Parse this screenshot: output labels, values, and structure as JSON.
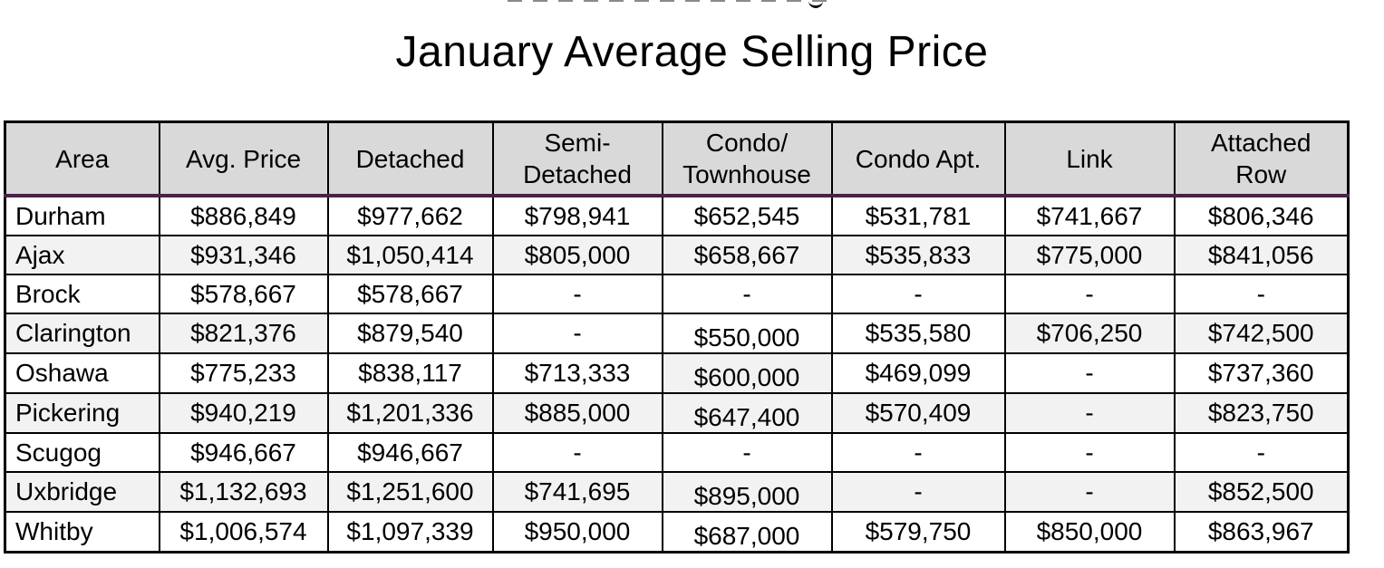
{
  "page": {
    "title": "January Average Selling Price"
  },
  "colors": {
    "header_bg": "#d9d9d9",
    "band_bg": "#f2f2f2",
    "header_underline": "#4b2049",
    "border": "#000000"
  },
  "table": {
    "columns": [
      "Area",
      "Avg. Price",
      "Detached",
      "Semi-\nDetached",
      "Condo/\nTownhouse",
      "Condo Apt.",
      "Link",
      "Attached\nRow"
    ],
    "rows": [
      {
        "cells": [
          {
            "v": "Durham",
            "bg": "w"
          },
          {
            "v": "$886,849",
            "bg": "w"
          },
          {
            "v": "$977,662",
            "bg": "w"
          },
          {
            "v": "$798,941",
            "bg": "w"
          },
          {
            "v": "$652,545",
            "bg": "w"
          },
          {
            "v": "$531,781",
            "bg": "w"
          },
          {
            "v": "$741,667",
            "bg": "w"
          },
          {
            "v": "$806,346",
            "bg": "w"
          }
        ]
      },
      {
        "cells": [
          {
            "v": "Ajax",
            "bg": "g"
          },
          {
            "v": "$931,346",
            "bg": "g"
          },
          {
            "v": "$1,050,414",
            "bg": "g"
          },
          {
            "v": "$805,000",
            "bg": "g"
          },
          {
            "v": "$658,667",
            "bg": "g"
          },
          {
            "v": "$535,833",
            "bg": "g"
          },
          {
            "v": "$775,000",
            "bg": "g"
          },
          {
            "v": "$841,056",
            "bg": "g"
          }
        ]
      },
      {
        "cells": [
          {
            "v": "Brock",
            "bg": "w"
          },
          {
            "v": "$578,667",
            "bg": "w"
          },
          {
            "v": "$578,667",
            "bg": "w"
          },
          {
            "v": "-",
            "bg": "w"
          },
          {
            "v": "-",
            "bg": "w"
          },
          {
            "v": "-",
            "bg": "w"
          },
          {
            "v": "-",
            "bg": "w"
          },
          {
            "v": "-",
            "bg": "w"
          }
        ]
      },
      {
        "cells": [
          {
            "v": "Clarington",
            "bg": "g"
          },
          {
            "v": "$821,376",
            "bg": "g"
          },
          {
            "v": "$879,540",
            "bg": "w"
          },
          {
            "v": "-",
            "bg": "w"
          },
          {
            "v": "$550,000",
            "bg": "w",
            "low": true
          },
          {
            "v": "$535,580",
            "bg": "w"
          },
          {
            "v": "$706,250",
            "bg": "g"
          },
          {
            "v": "$742,500",
            "bg": "g"
          }
        ]
      },
      {
        "cells": [
          {
            "v": "Oshawa",
            "bg": "w"
          },
          {
            "v": "$775,233",
            "bg": "w"
          },
          {
            "v": "$838,117",
            "bg": "w"
          },
          {
            "v": "$713,333",
            "bg": "w"
          },
          {
            "v": "$600,000",
            "bg": "g",
            "low": true
          },
          {
            "v": "$469,099",
            "bg": "w"
          },
          {
            "v": "-",
            "bg": "w"
          },
          {
            "v": "$737,360",
            "bg": "w"
          }
        ]
      },
      {
        "cells": [
          {
            "v": "Pickering",
            "bg": "g"
          },
          {
            "v": "$940,219",
            "bg": "g"
          },
          {
            "v": "$1,201,336",
            "bg": "g"
          },
          {
            "v": "$885,000",
            "bg": "g"
          },
          {
            "v": "$647,400",
            "bg": "g",
            "low": true
          },
          {
            "v": "$570,409",
            "bg": "g"
          },
          {
            "v": "-",
            "bg": "g"
          },
          {
            "v": "$823,750",
            "bg": "g"
          }
        ]
      },
      {
        "cells": [
          {
            "v": "Scugog",
            "bg": "w"
          },
          {
            "v": "$946,667",
            "bg": "w"
          },
          {
            "v": "$946,667",
            "bg": "w"
          },
          {
            "v": "-",
            "bg": "w"
          },
          {
            "v": "-",
            "bg": "w"
          },
          {
            "v": "-",
            "bg": "w"
          },
          {
            "v": "-",
            "bg": "w"
          },
          {
            "v": "-",
            "bg": "w"
          }
        ]
      },
      {
        "cells": [
          {
            "v": "Uxbridge",
            "bg": "g"
          },
          {
            "v": "$1,132,693",
            "bg": "g"
          },
          {
            "v": "$1,251,600",
            "bg": "g"
          },
          {
            "v": "$741,695",
            "bg": "g"
          },
          {
            "v": "$895,000",
            "bg": "g",
            "low": true
          },
          {
            "v": "-",
            "bg": "g"
          },
          {
            "v": "-",
            "bg": "g"
          },
          {
            "v": "$852,500",
            "bg": "g"
          }
        ]
      },
      {
        "cells": [
          {
            "v": "Whitby",
            "bg": "w"
          },
          {
            "v": "$1,006,574",
            "bg": "w"
          },
          {
            "v": "$1,097,339",
            "bg": "w"
          },
          {
            "v": "$950,000",
            "bg": "w"
          },
          {
            "v": "$687,000",
            "bg": "w",
            "low": true
          },
          {
            "v": "$579,750",
            "bg": "w"
          },
          {
            "v": "$850,000",
            "bg": "w"
          },
          {
            "v": "$863,967",
            "bg": "w"
          }
        ]
      }
    ]
  }
}
